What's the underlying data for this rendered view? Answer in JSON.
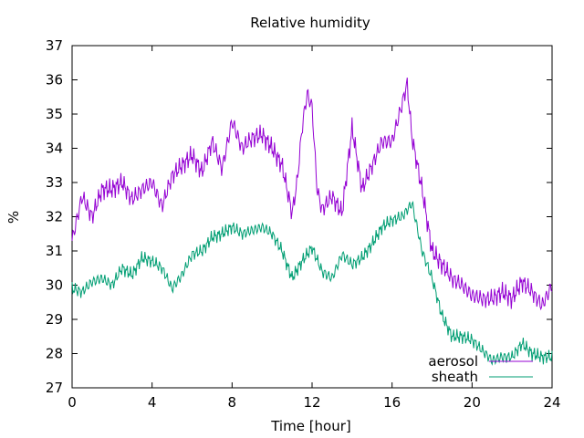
{
  "chart_data": {
    "type": "line",
    "title": "Relative humidity",
    "xlabel": "Time [hour]",
    "ylabel": "%",
    "xlim": [
      0,
      24
    ],
    "ylim": [
      27,
      37
    ],
    "xticks": [
      "0",
      "4",
      "8",
      "12",
      "16",
      "20",
      "24"
    ],
    "yticks": [
      "27",
      "28",
      "29",
      "30",
      "31",
      "32",
      "33",
      "34",
      "35",
      "36",
      "37"
    ],
    "grid": false,
    "legend_position": "bottom-right",
    "series": [
      {
        "name": "aerosol",
        "color": "#9400d3",
        "x": [
          0,
          0.5,
          1,
          1.5,
          2,
          2.5,
          3,
          3.5,
          4,
          4.5,
          5,
          5.5,
          6,
          6.5,
          7,
          7.5,
          8,
          8.5,
          9,
          9.5,
          10,
          10.5,
          11,
          11.25,
          11.5,
          11.75,
          12,
          12.25,
          12.5,
          13,
          13.5,
          14,
          14.5,
          15,
          15.5,
          16,
          16.5,
          16.75,
          17,
          17.5,
          18,
          18.5,
          19,
          19.5,
          20,
          20.5,
          21,
          21.5,
          22,
          22.5,
          23,
          23.5,
          24
        ],
        "y": [
          31.3,
          32.6,
          32.0,
          32.8,
          32.8,
          33.0,
          32.5,
          32.8,
          33.0,
          32.3,
          33.2,
          33.5,
          33.8,
          33.3,
          34.2,
          33.4,
          34.8,
          34.0,
          34.3,
          34.4,
          34.0,
          33.5,
          32.1,
          33.0,
          34.6,
          35.6,
          35.2,
          32.8,
          32.2,
          32.6,
          32.1,
          34.6,
          32.8,
          33.5,
          34.2,
          34.2,
          35.3,
          35.9,
          34.3,
          32.8,
          31.0,
          30.6,
          30.2,
          30.0,
          29.7,
          29.6,
          29.6,
          29.8,
          29.6,
          30.1,
          29.8,
          29.4,
          30.0
        ]
      },
      {
        "name": "sheath",
        "color": "#009e73",
        "x": [
          0,
          0.5,
          1,
          1.5,
          2,
          2.5,
          3,
          3.5,
          4,
          4.5,
          5,
          5.5,
          6,
          6.5,
          7,
          7.5,
          8,
          8.5,
          9,
          9.5,
          10,
          10.5,
          11,
          11.5,
          12,
          12.5,
          13,
          13.5,
          14,
          14.5,
          15,
          15.5,
          16,
          16.5,
          17,
          17.5,
          18,
          18.5,
          19,
          19.5,
          20,
          20.5,
          21,
          21.5,
          22,
          22.5,
          23,
          23.5,
          24
        ],
        "y": [
          29.9,
          29.8,
          30.1,
          30.2,
          30.0,
          30.5,
          30.3,
          30.8,
          30.7,
          30.5,
          29.9,
          30.3,
          30.9,
          31.0,
          31.4,
          31.5,
          31.7,
          31.5,
          31.6,
          31.7,
          31.5,
          31.0,
          30.2,
          30.7,
          31.1,
          30.4,
          30.2,
          30.9,
          30.6,
          30.8,
          31.2,
          31.7,
          31.9,
          32.0,
          32.4,
          31.0,
          30.2,
          29.1,
          28.5,
          28.5,
          28.4,
          28.1,
          27.8,
          27.9,
          27.9,
          28.3,
          28.0,
          27.9,
          27.9
        ]
      }
    ]
  }
}
